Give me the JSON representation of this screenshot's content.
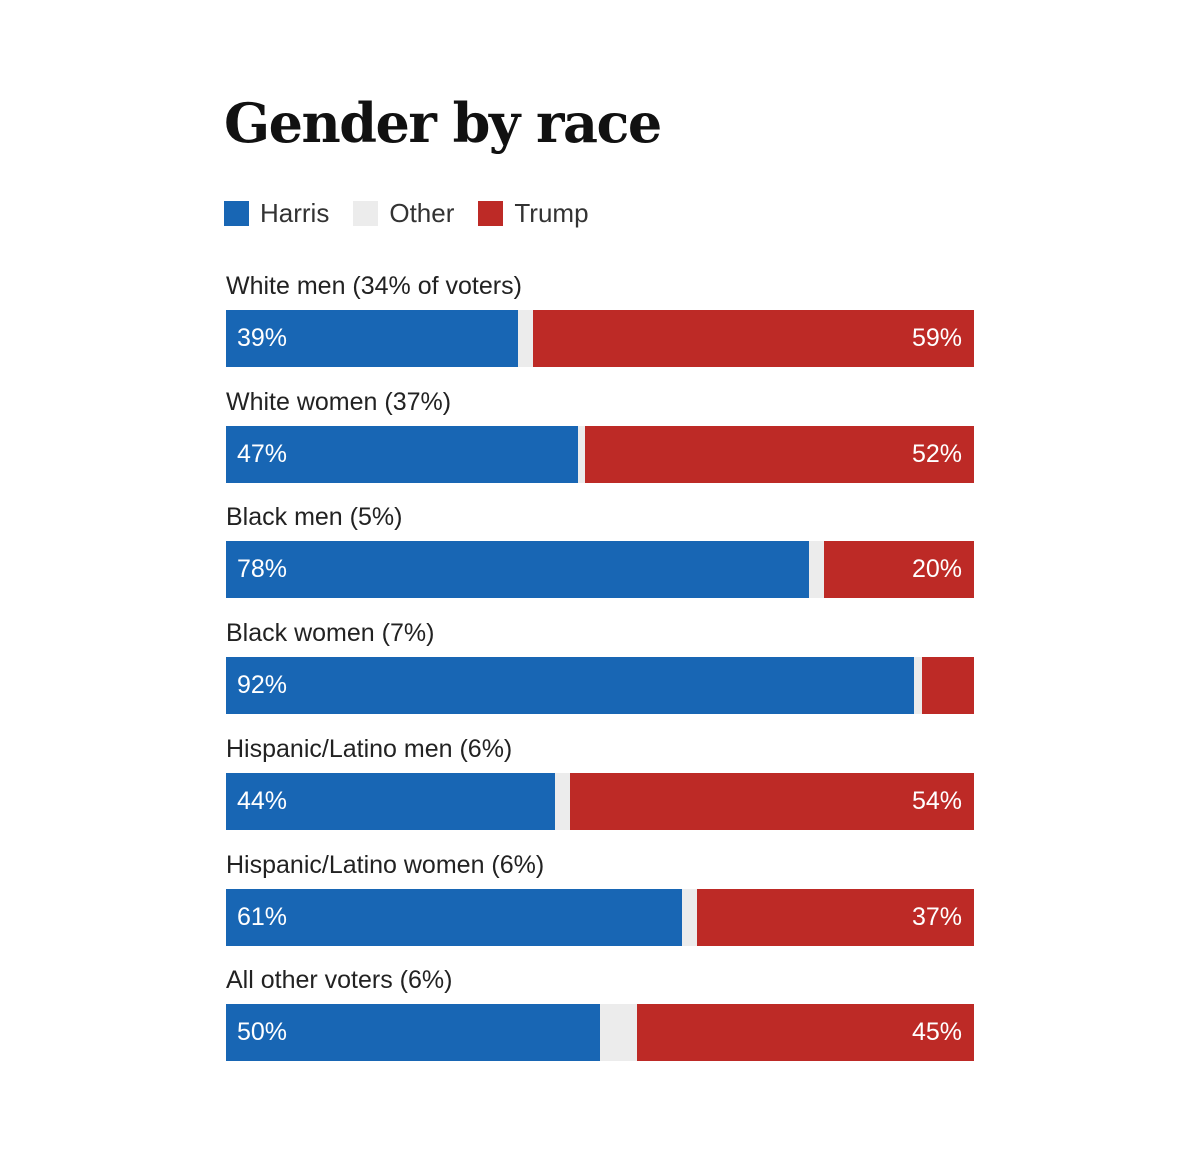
{
  "chart_data": {
    "type": "bar",
    "orientation": "horizontal",
    "stacked": true,
    "title": "Gender by race",
    "legend": [
      {
        "name": "Harris",
        "color": "#1866b4"
      },
      {
        "name": "Other",
        "color": "#ececec"
      },
      {
        "name": "Trump",
        "color": "#bd2a26"
      }
    ],
    "xlim": [
      0,
      100
    ],
    "rows": [
      {
        "label": "White men (34% of voters)",
        "harris": 39,
        "trump": 59,
        "harris_label": "39%",
        "trump_label": "59%"
      },
      {
        "label": "White women (37%)",
        "harris": 47,
        "trump": 52,
        "harris_label": "47%",
        "trump_label": "52%"
      },
      {
        "label": "Black men (5%)",
        "harris": 78,
        "trump": 20,
        "harris_label": "78%",
        "trump_label": "20%"
      },
      {
        "label": "Black women (7%)",
        "harris": 92,
        "trump": 7,
        "harris_label": "92%",
        "trump_label": ""
      },
      {
        "label": "Hispanic/Latino men (6%)",
        "harris": 44,
        "trump": 54,
        "harris_label": "44%",
        "trump_label": "54%"
      },
      {
        "label": "Hispanic/Latino women (6%)",
        "harris": 61,
        "trump": 37,
        "harris_label": "61%",
        "trump_label": "37%"
      },
      {
        "label": "All other voters (6%)",
        "harris": 50,
        "trump": 45,
        "harris_label": "50%",
        "trump_label": "45%"
      }
    ]
  }
}
